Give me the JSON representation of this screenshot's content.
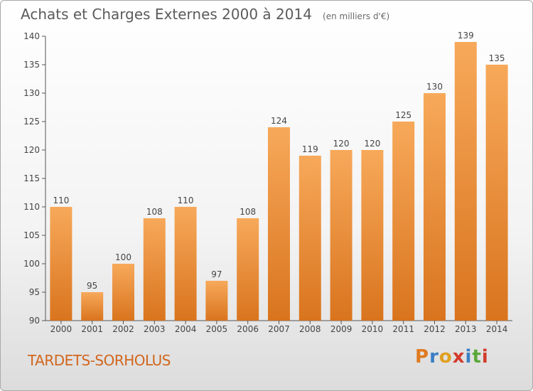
{
  "header": {
    "title": "Achats et Charges Externes 2000 à 2014",
    "unit": "(en milliers d'€)"
  },
  "footer": {
    "place": "TARDETS-SORHOLUS",
    "brand": "Proxiti",
    "brand_colors": [
      "#e07a20",
      "#3a7fc4",
      "#e0a020",
      "#d23b2b",
      "#3a7fc4",
      "#5aa83a",
      "#d23b2b"
    ]
  },
  "colors": {
    "bar_top": "#f7a95a",
    "bar_bottom": "#d9741e",
    "axis": "#555555",
    "grid": "#cfcfcf"
  },
  "chart_data": {
    "type": "bar",
    "title": "Achats et Charges Externes 2000 à 2014",
    "subtitle": "(en milliers d'€)",
    "categories": [
      "2000",
      "2001",
      "2002",
      "2003",
      "2004",
      "2005",
      "2006",
      "2007",
      "2008",
      "2009",
      "2010",
      "2011",
      "2012",
      "2013",
      "2014"
    ],
    "values": [
      110,
      95,
      100,
      108,
      110,
      97,
      108,
      124,
      119,
      120,
      120,
      125,
      130,
      139,
      135
    ],
    "ylim": [
      90,
      140
    ],
    "yticks": [
      90,
      95,
      100,
      105,
      110,
      115,
      120,
      125,
      130,
      135,
      140
    ],
    "grid": false,
    "legend": "none",
    "data_labels": true
  }
}
